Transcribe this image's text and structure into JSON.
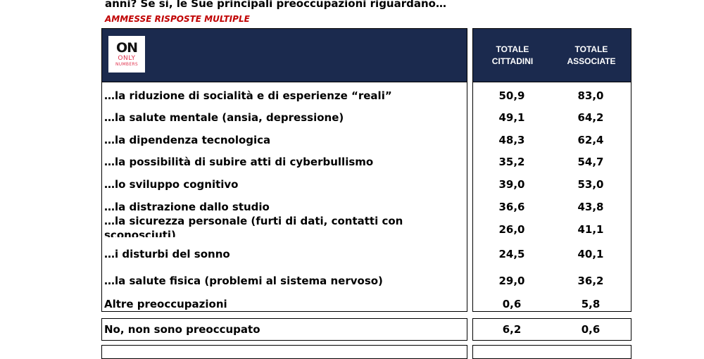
{
  "question": "anni? Se sì, le Sue principali preoccupazioni riguardano…",
  "subtitle": "AMMESSE RISPOSTE MULTIPLE",
  "logo": {
    "mark": "ON",
    "line1": "ONLY",
    "line2": "NUMBERS"
  },
  "columns": [
    {
      "line1": "TOTALE",
      "line2": "CITTADINI"
    },
    {
      "line1": "TOTALE",
      "line2": "ASSOCIATE"
    }
  ],
  "rows": [
    {
      "label": "…la riduzione di socialità e di esperienze “reali”",
      "cittadini": "50,9",
      "associate": "83,0"
    },
    {
      "label": "…la salute mentale (ansia, depressione)",
      "cittadini": "49,1",
      "associate": "64,2"
    },
    {
      "label": "…la dipendenza tecnologica",
      "cittadini": "48,3",
      "associate": "62,4"
    },
    {
      "label": "…la possibilità di subire atti di cyberbullismo",
      "cittadini": "35,2",
      "associate": "54,7"
    },
    {
      "label": "…lo sviluppo cognitivo",
      "cittadini": "39,0",
      "associate": "53,0"
    },
    {
      "label": "…la distrazione dallo studio",
      "cittadini": "36,6",
      "associate": "43,8"
    },
    {
      "label": "…la sicurezza personale (furti di dati, contatti con sconosciuti)",
      "cittadini": "26,0",
      "associate": "41,1"
    },
    {
      "label": "…i disturbi del sonno",
      "cittadini": "24,5",
      "associate": "40,1"
    },
    {
      "label": "…la salute fisica (problemi al sistema nervoso)",
      "cittadini": "29,0",
      "associate": "36,2"
    },
    {
      "label": "Altre preoccupazioni",
      "cittadini": "0,6",
      "associate": "5,8"
    }
  ],
  "no_row": {
    "label": "No, non sono preoccupato",
    "cittadini": "6,2",
    "associate": "0,6"
  }
}
